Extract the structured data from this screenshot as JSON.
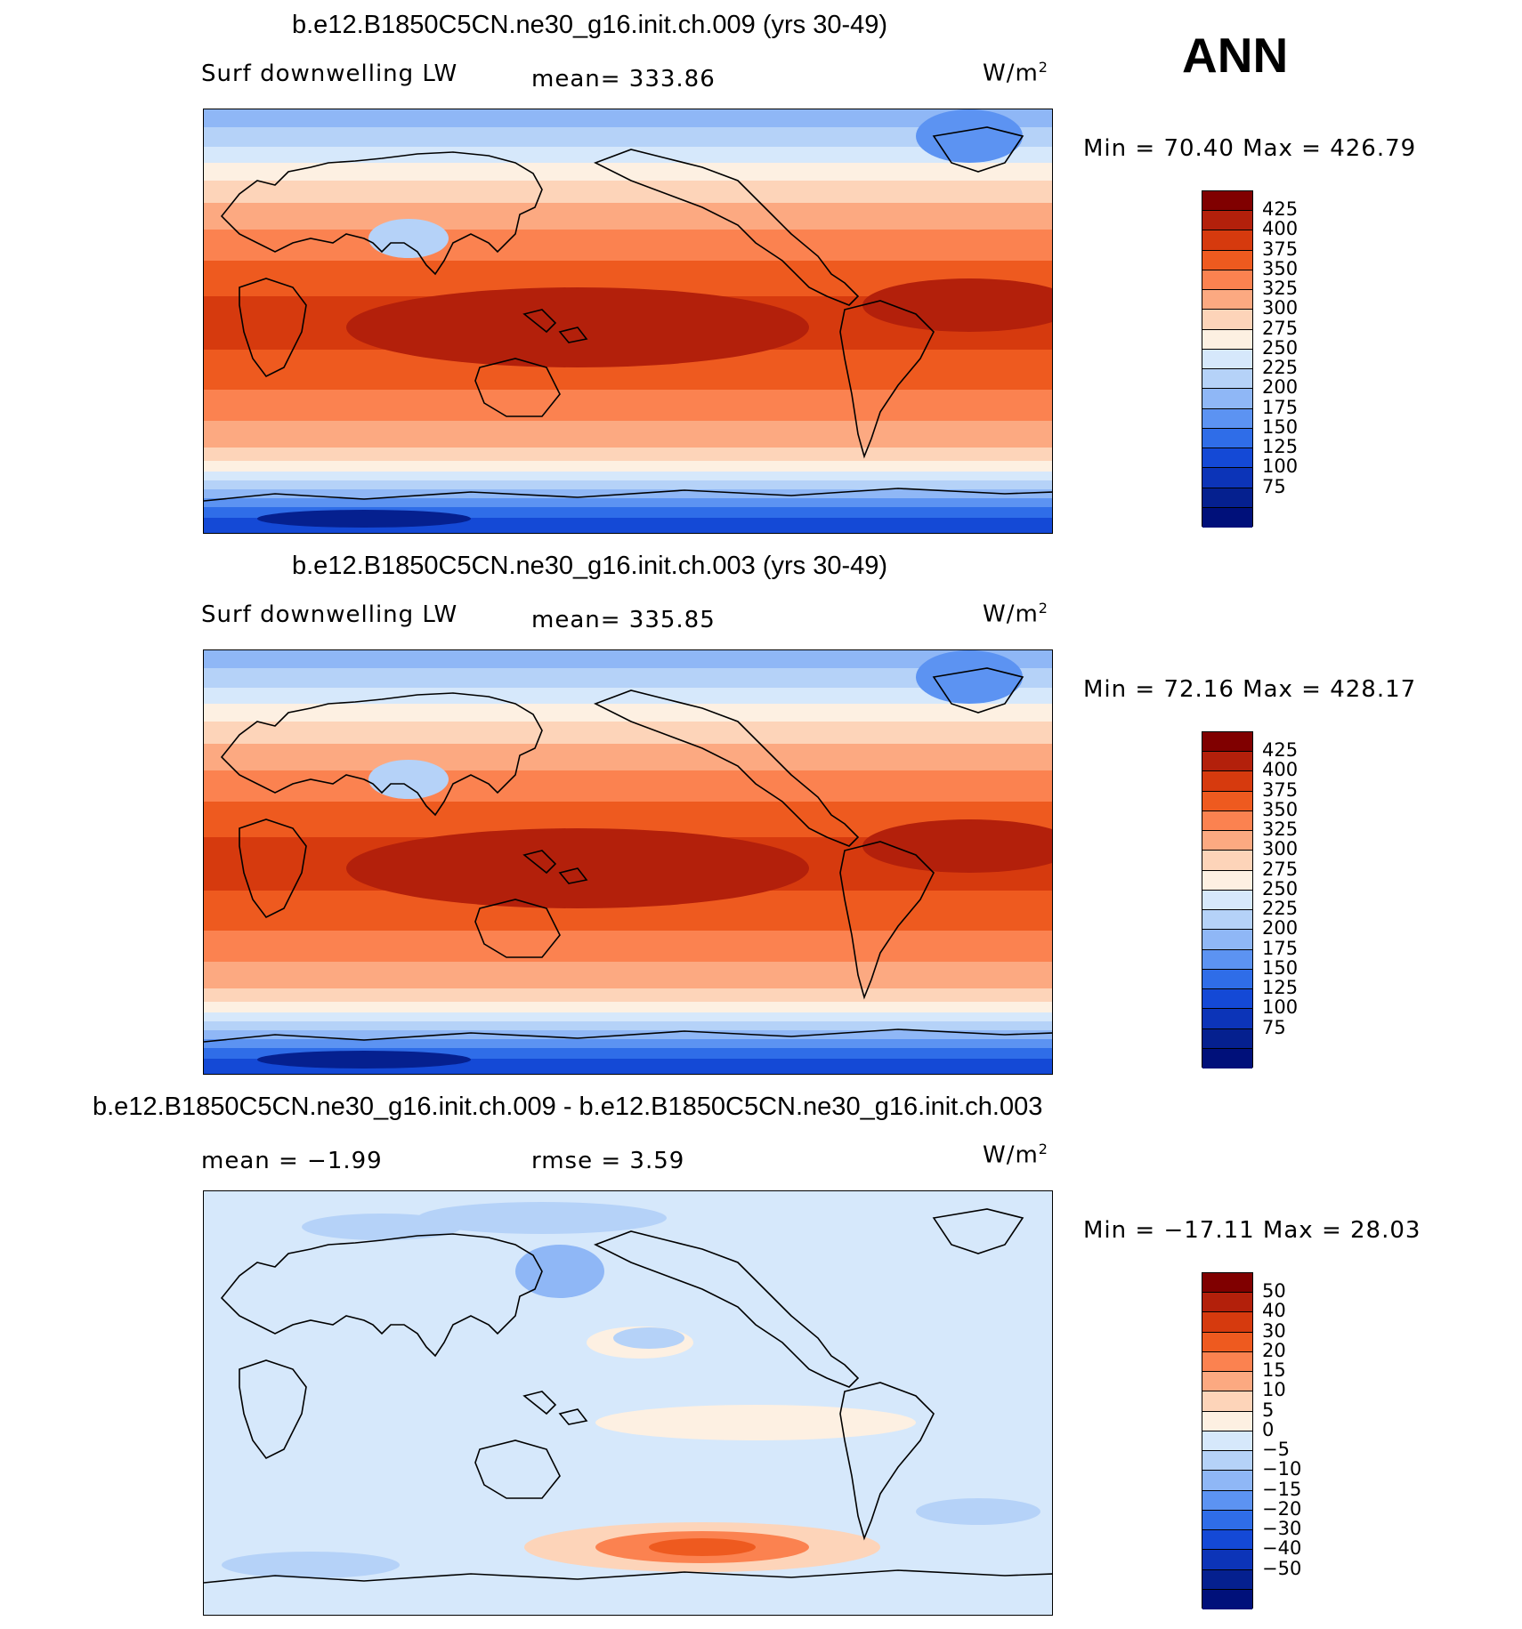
{
  "header": {
    "season": "ANN"
  },
  "panels": [
    {
      "title": "b.e12.B1850C5CN.ne30_g16.init.ch.009 (yrs 30-49)",
      "left_label": "Surf downwelling LW",
      "center_label": "mean= 333.86",
      "units": "W/m",
      "units_exp": "2",
      "minmax": "Min =   70.40 Max = 426.79",
      "map_kind": "absolute",
      "colorbar": {
        "colors": [
          "#800000",
          "#b3200b",
          "#d63a0e",
          "#ee5a1f",
          "#fb8250",
          "#fca981",
          "#fdd4b9",
          "#fdf0e2",
          "#d6e8fb",
          "#b5d2f8",
          "#8fb7f6",
          "#5c93f2",
          "#2f6de8",
          "#1449d6",
          "#0c34b8",
          "#05208f",
          "#00107a"
        ],
        "labels": [
          "425",
          "400",
          "375",
          "350",
          "325",
          "300",
          "275",
          "250",
          "225",
          "200",
          "175",
          "150",
          "125",
          "100",
          "75"
        ]
      }
    },
    {
      "title": "b.e12.B1850C5CN.ne30_g16.init.ch.003 (yrs 30-49)",
      "left_label": "Surf downwelling LW",
      "center_label": "mean= 335.85",
      "units": "W/m",
      "units_exp": "2",
      "minmax": "Min =   72.16 Max = 428.17",
      "map_kind": "absolute",
      "colorbar": {
        "colors": [
          "#800000",
          "#b3200b",
          "#d63a0e",
          "#ee5a1f",
          "#fb8250",
          "#fca981",
          "#fdd4b9",
          "#fdf0e2",
          "#d6e8fb",
          "#b5d2f8",
          "#8fb7f6",
          "#5c93f2",
          "#2f6de8",
          "#1449d6",
          "#0c34b8",
          "#05208f",
          "#00107a"
        ],
        "labels": [
          "425",
          "400",
          "375",
          "350",
          "325",
          "300",
          "275",
          "250",
          "225",
          "200",
          "175",
          "150",
          "125",
          "100",
          "75"
        ]
      }
    },
    {
      "title": "b.e12.B1850C5CN.ne30_g16.init.ch.009 - b.e12.B1850C5CN.ne30_g16.init.ch.003",
      "left_label": "mean =   −1.99",
      "center_label": "rmse =     3.59",
      "units": "W/m",
      "units_exp": "2",
      "minmax": "Min = −17.11 Max =   28.03",
      "map_kind": "difference",
      "colorbar": {
        "colors": [
          "#800000",
          "#b3200b",
          "#d63a0e",
          "#ee5a1f",
          "#fb8250",
          "#fca981",
          "#fdd4b9",
          "#fdf0e2",
          "#d6e8fb",
          "#b5d2f8",
          "#8fb7f6",
          "#5c93f2",
          "#2f6de8",
          "#1449d6",
          "#0c34b8",
          "#05208f",
          "#00107a"
        ],
        "labels": [
          "50",
          "40",
          "30",
          "20",
          "15",
          "10",
          "5",
          "0",
          "−5",
          "−10",
          "−15",
          "−20",
          "−30",
          "−40",
          "−50"
        ]
      }
    }
  ]
}
